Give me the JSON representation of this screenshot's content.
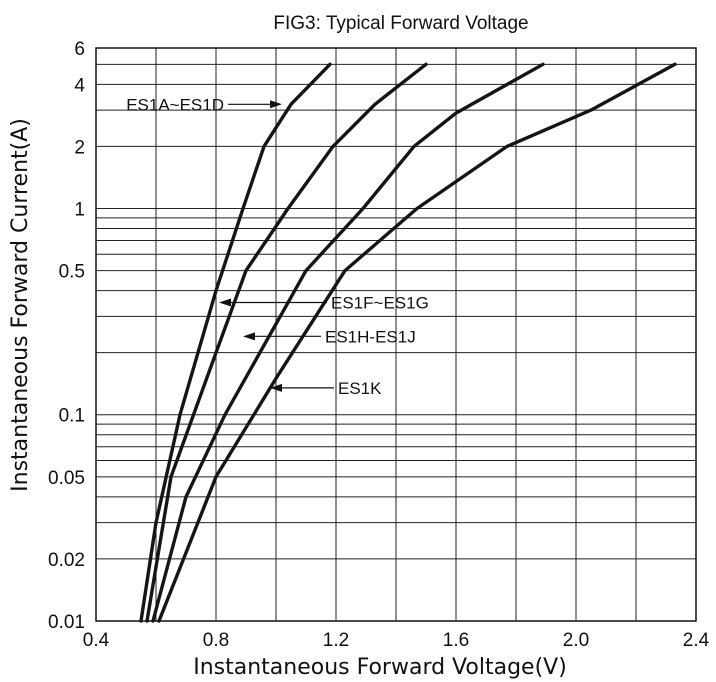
{
  "chart_data": {
    "type": "line",
    "title": "FIG3: Typical Forward Voltage",
    "xlabel": "Instantaneous Forward Voltage(V)",
    "ylabel": "Instantaneous Forward Current(A)",
    "xscale": "linear",
    "yscale": "log",
    "xlim": [
      0.4,
      2.4
    ],
    "ylim": [
      0.01,
      6
    ],
    "xticks": [
      0.4,
      0.8,
      1.2,
      1.6,
      2.0,
      2.4
    ],
    "xtick_labels": [
      "0.4",
      "0.8",
      "1.2",
      "1.6",
      "2.0",
      "2.4"
    ],
    "yticks": [
      0.01,
      0.02,
      0.05,
      0.1,
      0.5,
      1,
      2,
      4,
      6
    ],
    "ytick_labels": [
      "0.01",
      "0.02",
      "0.05",
      "0.1",
      "0.5",
      "1",
      "2",
      "4",
      "6"
    ],
    "grid": true,
    "series": [
      {
        "name": "ES1A~ES1D",
        "x": [
          0.55,
          0.6,
          0.68,
          0.8,
          0.89,
          0.96,
          1.05,
          1.18
        ],
        "y": [
          0.01,
          0.03,
          0.1,
          0.4,
          1,
          2,
          3.2,
          5
        ]
      },
      {
        "name": "ES1F~ES1G",
        "x": [
          0.57,
          0.65,
          0.8,
          0.9,
          1.04,
          1.19,
          1.33,
          1.5
        ],
        "y": [
          0.01,
          0.05,
          0.2,
          0.5,
          1,
          2,
          3.2,
          5
        ]
      },
      {
        "name": "ES1H-ES1J",
        "x": [
          0.59,
          0.7,
          0.83,
          1.1,
          1.29,
          1.46,
          1.6,
          1.89
        ],
        "y": [
          0.01,
          0.04,
          0.1,
          0.5,
          1,
          2,
          2.9,
          5
        ]
      },
      {
        "name": "ES1K",
        "x": [
          0.61,
          0.8,
          1.0,
          1.23,
          1.47,
          1.77,
          2.05,
          2.33
        ],
        "y": [
          0.01,
          0.05,
          0.15,
          0.5,
          1,
          2,
          3,
          5
        ]
      }
    ],
    "annotations": [
      {
        "text": "ES1A~ES1D",
        "series": "ES1A~ES1D",
        "x": 1.02,
        "y": 3.2
      },
      {
        "text": "ES1F~ES1G",
        "series": "ES1F~ES1G",
        "x": 0.81,
        "y": 0.35
      },
      {
        "text": "ES1H-ES1J",
        "series": "ES1H-ES1J",
        "x": 0.89,
        "y": 0.24
      },
      {
        "text": "ES1K",
        "series": "ES1K",
        "x": 0.98,
        "y": 0.135
      }
    ]
  }
}
